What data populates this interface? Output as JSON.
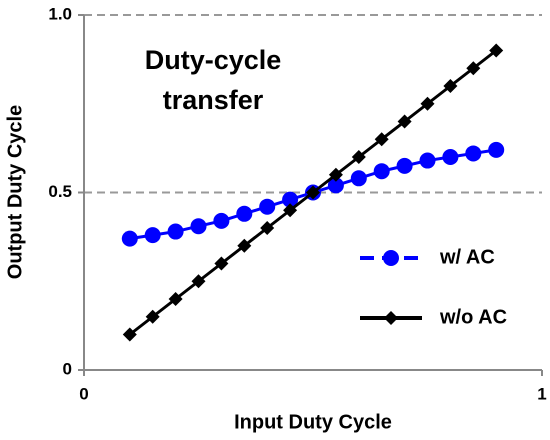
{
  "chart_data": {
    "type": "line",
    "title": "Duty-cycle transfer",
    "x_label": "Input Duty Cycle",
    "y_label": "Output Duty Cycle",
    "x": [
      0.1,
      0.15,
      0.2,
      0.25,
      0.3,
      0.35,
      0.4,
      0.45,
      0.5,
      0.55,
      0.6,
      0.65,
      0.7,
      0.75,
      0.8,
      0.85,
      0.9
    ],
    "series": [
      {
        "name": "w/ AC",
        "color": "#0000ff",
        "marker": "circle",
        "dashed_legend": true,
        "values": [
          0.37,
          0.38,
          0.39,
          0.405,
          0.42,
          0.44,
          0.46,
          0.48,
          0.5,
          0.52,
          0.54,
          0.56,
          0.575,
          0.59,
          0.6,
          0.61,
          0.62
        ]
      },
      {
        "name": "w/o AC",
        "color": "#000000",
        "marker": "diamond",
        "dashed_legend": false,
        "values": [
          0.1,
          0.15,
          0.2,
          0.25,
          0.3,
          0.35,
          0.4,
          0.45,
          0.5,
          0.55,
          0.6,
          0.65,
          0.7,
          0.75,
          0.8,
          0.85,
          0.9
        ]
      }
    ],
    "xlim": [
      0,
      1
    ],
    "ylim": [
      0,
      1
    ],
    "xticks": [
      0,
      1
    ],
    "yticks": [
      0,
      0.5,
      {
        "value": 1,
        "label": "1.0"
      }
    ],
    "grid": true,
    "legend": "lower right"
  }
}
